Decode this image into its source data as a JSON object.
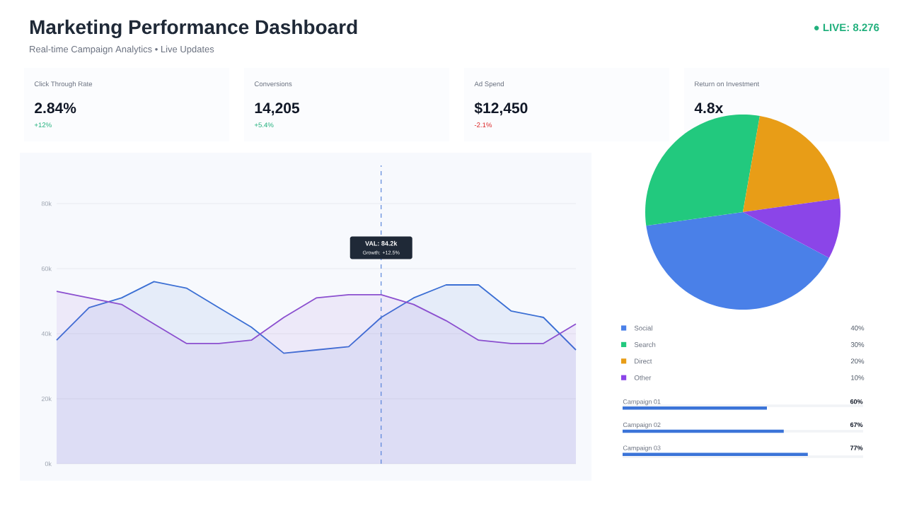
{
  "chart_data": [
    {
      "type": "other",
      "title": "Marketing Performance Dashboard",
      "subtitle": "Real-time Campaign Analytics • Live Updates",
      "annotations": [
        "● LIVE: 8.276",
        "Click Through Rate",
        "2.84%",
        "+12%",
        "Conversions",
        "14,205",
        "+5.4%",
        "Ad Spend",
        "$12,450",
        "-2.1%",
        "Return on Investment",
        "4.8x"
      ]
    },
    {
      "type": "area",
      "categories": [
        null,
        null,
        null,
        null,
        null,
        null,
        null,
        null,
        null,
        null,
        null,
        null,
        null,
        null,
        null,
        null,
        null
      ],
      "ylim": [
        0,
        80
      ],
      "yticks": [
        {
          "value": 0,
          "label": "0k"
        },
        {
          "value": 20,
          "label": "20k"
        },
        {
          "value": 40,
          "label": "40k"
        },
        {
          "value": 60,
          "label": "60k"
        },
        {
          "value": 80,
          "label": "80k"
        }
      ],
      "tick_labels": "y",
      "grid": "y",
      "marker": "none",
      "line_style": "solid",
      "series": [
        {
          "color": "#3b6fd4",
          "values": [
            38,
            48,
            51,
            56,
            54,
            48,
            42,
            34,
            35,
            36,
            45,
            51,
            55,
            55,
            47,
            45,
            35
          ]
        },
        {
          "color": "#8b4fcf",
          "values": [
            53,
            51,
            49,
            43,
            37,
            37,
            38,
            45,
            51,
            52,
            52,
            49,
            44,
            38,
            37,
            37,
            43
          ]
        }
      ],
      "annotations": [
        "VAL: 84.2k",
        "Growth: +12.5%"
      ]
    },
    {
      "type": "pie",
      "categories": [
        "Social",
        "Search",
        "Direct",
        "Other"
      ],
      "values": [
        40,
        30,
        20,
        10
      ],
      "colors": [
        "#4a80e8",
        "#22c97e",
        "#e89d17",
        "#8b45e8"
      ],
      "value_labels": [
        "40%",
        "30%",
        "20%",
        "10%"
      ],
      "legend": "bottom"
    },
    {
      "type": "bar",
      "orientation": "horizontal",
      "categories": [
        "Campaign 01",
        "Campaign 02",
        "Campaign 03"
      ],
      "values": [
        60,
        67,
        77
      ],
      "value_labels": [
        "60%",
        "67%",
        "77%"
      ],
      "color": "#3b74d8",
      "xlim": [
        0,
        100
      ],
      "tick_labels": false
    }
  ]
}
